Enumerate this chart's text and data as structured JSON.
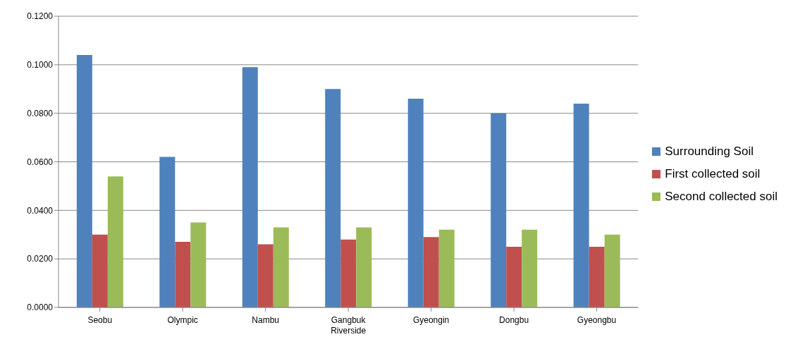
{
  "chart_data": {
    "type": "bar",
    "categories": [
      "Seobu",
      "Olympic",
      "Nambu",
      "Gangbuk Riverside",
      "Gyeongin",
      "Dongbu",
      "Gyeongbu"
    ],
    "series": [
      {
        "name": "Surrounding Soil",
        "color": "#4f81bd",
        "values": [
          0.104,
          0.062,
          0.099,
          0.09,
          0.086,
          0.08,
          0.084
        ]
      },
      {
        "name": "First collected soil",
        "color": "#c0504d",
        "values": [
          0.03,
          0.027,
          0.026,
          0.028,
          0.029,
          0.025,
          0.025
        ]
      },
      {
        "name": "Second collected soil",
        "color": "#9bbb59",
        "values": [
          0.054,
          0.035,
          0.033,
          0.033,
          0.032,
          0.032,
          0.03
        ]
      }
    ],
    "ylim": [
      0,
      0.12
    ],
    "yticks": [
      {
        "value": 0,
        "label": "0.0000"
      },
      {
        "value": 0.02,
        "label": "0.0200"
      },
      {
        "value": 0.04,
        "label": "0.0400"
      },
      {
        "value": 0.06,
        "label": "0.0600"
      },
      {
        "value": 0.08,
        "label": "0.0800"
      },
      {
        "value": 0.1,
        "label": "0.1000"
      },
      {
        "value": 0.12,
        "label": "0.1200"
      }
    ],
    "grid": "y",
    "legend": "right"
  }
}
